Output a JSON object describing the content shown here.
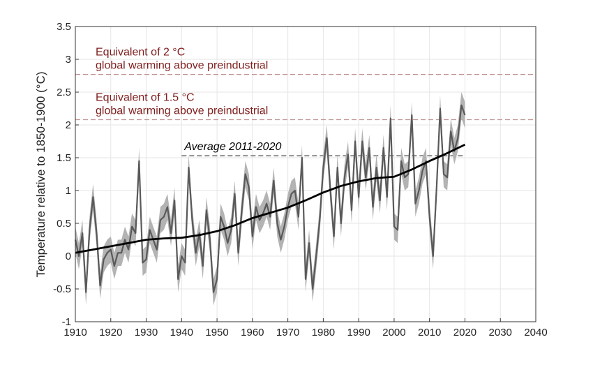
{
  "chart_data": {
    "type": "line",
    "ylabel": "Temperature relative to 1850-1900 (°C)",
    "xlim": [
      1910,
      2040
    ],
    "xticks": [
      1910,
      1920,
      1930,
      1940,
      1950,
      1960,
      1970,
      1980,
      1990,
      2000,
      2010,
      2020,
      2030,
      2040
    ],
    "ylim": [
      -1,
      3.5
    ],
    "yticks": [
      -1,
      -0.5,
      0,
      0.5,
      1,
      1.5,
      2,
      2.5,
      3,
      3.5
    ],
    "grid": true,
    "series": [
      {
        "color": "#595959",
        "band_color": "#b3b3b3",
        "error": 0.2,
        "x": [
          1910,
          1911,
          1912,
          1913,
          1914,
          1915,
          1916,
          1917,
          1918,
          1919,
          1920,
          1921,
          1922,
          1923,
          1924,
          1925,
          1926,
          1927,
          1928,
          1929,
          1930,
          1931,
          1932,
          1933,
          1934,
          1935,
          1936,
          1937,
          1938,
          1939,
          1940,
          1941,
          1942,
          1943,
          1944,
          1945,
          1946,
          1947,
          1948,
          1949,
          1950,
          1951,
          1952,
          1953,
          1954,
          1955,
          1956,
          1957,
          1958,
          1959,
          1960,
          1961,
          1962,
          1963,
          1964,
          1965,
          1966,
          1967,
          1968,
          1969,
          1970,
          1971,
          1972,
          1973,
          1974,
          1975,
          1976,
          1977,
          1978,
          1979,
          1980,
          1981,
          1982,
          1983,
          1984,
          1985,
          1986,
          1987,
          1988,
          1989,
          1990,
          1991,
          1992,
          1993,
          1994,
          1995,
          1996,
          1997,
          1998,
          1999,
          2000,
          2001,
          2002,
          2003,
          2004,
          2005,
          2006,
          2007,
          2008,
          2009,
          2010,
          2011,
          2012,
          2013,
          2014,
          2015,
          2016,
          2017,
          2018,
          2019,
          2020
        ],
        "values": [
          0.25,
          0.0,
          0.35,
          -0.55,
          0.4,
          0.9,
          0.35,
          -0.45,
          -0.05,
          0.05,
          0.1,
          -0.15,
          0.05,
          0.05,
          0.25,
          0.1,
          0.45,
          0.35,
          1.45,
          -0.1,
          -0.05,
          0.4,
          0.25,
          0.1,
          0.55,
          0.6,
          0.75,
          0.35,
          0.85,
          -0.35,
          0.0,
          -0.1,
          1.35,
          0.55,
          0.05,
          0.35,
          -0.15,
          0.7,
          0.25,
          -0.55,
          -0.35,
          0.6,
          0.45,
          0.2,
          0.4,
          0.95,
          0.05,
          0.7,
          1.25,
          1.05,
          0.3,
          0.75,
          0.55,
          0.65,
          0.8,
          0.6,
          1.15,
          0.5,
          0.25,
          0.45,
          0.75,
          0.95,
          1.0,
          0.6,
          1.5,
          -0.35,
          0.2,
          -0.5,
          0.0,
          0.55,
          1.35,
          1.8,
          1.0,
          0.3,
          1.35,
          0.5,
          1.2,
          1.55,
          0.7,
          1.75,
          0.9,
          1.75,
          1.2,
          1.65,
          0.75,
          1.35,
          0.85,
          1.65,
          0.9,
          2.1,
          0.45,
          0.4,
          1.45,
          1.2,
          1.25,
          2.15,
          0.8,
          1.0,
          1.3,
          1.45,
          0.6,
          0.0,
          1.05,
          2.25,
          1.25,
          1.2,
          1.9,
          1.6,
          1.8,
          2.3,
          2.15
        ]
      },
      {
        "color": "#000000",
        "x": [
          1910,
          1915,
          1920,
          1925,
          1930,
          1935,
          1940,
          1945,
          1950,
          1955,
          1960,
          1965,
          1970,
          1975,
          1980,
          1985,
          1990,
          1995,
          2000,
          2005,
          2010,
          2015,
          2020
        ],
        "values": [
          0.05,
          0.1,
          0.15,
          0.2,
          0.25,
          0.27,
          0.28,
          0.32,
          0.38,
          0.47,
          0.58,
          0.66,
          0.74,
          0.85,
          0.97,
          1.07,
          1.14,
          1.19,
          1.21,
          1.32,
          1.45,
          1.57,
          1.7
        ]
      }
    ],
    "hlines": [
      {
        "value": 2.77,
        "color": "#c09090",
        "text_color": "#7f1d1d",
        "label": [
          "Equivalent of 2 °C",
          "global warming above preindustrial"
        ]
      },
      {
        "value": 2.08,
        "color": "#c09090",
        "text_color": "#7f1d1d",
        "label": [
          "Equivalent of 1.5 °C",
          "global warming above preindustrial"
        ]
      },
      {
        "value": 1.53,
        "color": "#555555",
        "text_color": "#000000",
        "italic": true,
        "xrange": [
          1940,
          2020
        ],
        "label": [
          "Average 2011-2020"
        ]
      }
    ]
  }
}
